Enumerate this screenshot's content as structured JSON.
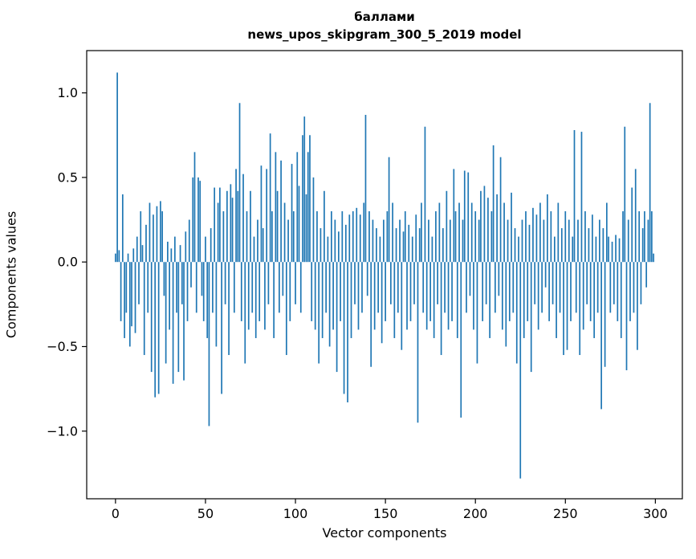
{
  "figure": {
    "title_line1": "баллами",
    "title_line2": "news_upos_skipgram_300_5_2019 model",
    "xlabel": "Vector components",
    "ylabel": "Components values"
  },
  "chart_data": {
    "type": "bar",
    "title": "баллами\nnews_upos_skipgram_300_5_2019 model",
    "xlabel": "Vector components",
    "ylabel": "Components values",
    "bar_color": "#1f77b4",
    "axis_color": "#000000",
    "grid": false,
    "legend": "none",
    "x_start": 0,
    "xlim": [
      -16,
      315
    ],
    "ylim": [
      -1.4,
      1.25
    ],
    "x_ticks": [
      0,
      50,
      100,
      150,
      200,
      250,
      300
    ],
    "x_tick_labels": [
      "0",
      "50",
      "100",
      "150",
      "200",
      "250",
      "300"
    ],
    "y_ticks": [
      -1.0,
      -0.5,
      0.0,
      0.5,
      1.0
    ],
    "y_tick_labels": [
      "−1.0",
      "−0.5",
      "0.0",
      "0.5",
      "1.0"
    ],
    "values": [
      0.05,
      1.12,
      0.07,
      -0.35,
      0.4,
      -0.45,
      -0.3,
      0.05,
      -0.5,
      -0.38,
      0.08,
      -0.42,
      0.15,
      -0.25,
      0.3,
      0.1,
      -0.55,
      0.22,
      -0.3,
      0.35,
      -0.65,
      0.28,
      -0.8,
      0.33,
      -0.78,
      0.36,
      0.3,
      -0.2,
      -0.6,
      0.12,
      -0.4,
      0.08,
      -0.72,
      0.15,
      -0.3,
      -0.65,
      0.1,
      -0.25,
      -0.7,
      0.18,
      -0.35,
      0.25,
      -0.15,
      0.5,
      0.65,
      -0.3,
      0.5,
      0.48,
      -0.2,
      -0.35,
      0.15,
      -0.45,
      -0.97,
      0.2,
      -0.3,
      0.44,
      -0.5,
      0.35,
      0.44,
      -0.78,
      0.3,
      -0.25,
      0.42,
      -0.55,
      0.46,
      0.38,
      -0.3,
      0.55,
      0.42,
      0.94,
      -0.35,
      0.52,
      -0.6,
      0.3,
      -0.4,
      0.42,
      -0.3,
      0.15,
      -0.45,
      0.25,
      -0.35,
      0.57,
      0.2,
      -0.4,
      0.55,
      -0.25,
      0.76,
      0.3,
      -0.45,
      0.65,
      0.42,
      -0.3,
      0.6,
      -0.2,
      0.35,
      -0.55,
      0.25,
      -0.35,
      0.58,
      0.3,
      -0.25,
      0.65,
      0.45,
      -0.3,
      0.75,
      0.86,
      0.4,
      0.65,
      0.75,
      -0.35,
      0.5,
      -0.4,
      0.3,
      -0.6,
      0.2,
      -0.45,
      0.42,
      -0.3,
      0.15,
      -0.5,
      0.3,
      -0.4,
      0.25,
      -0.65,
      0.18,
      -0.35,
      0.3,
      -0.78,
      0.22,
      -0.83,
      0.28,
      -0.45,
      0.3,
      -0.25,
      0.32,
      -0.4,
      0.28,
      -0.3,
      0.35,
      0.87,
      -0.2,
      0.3,
      -0.62,
      0.25,
      -0.4,
      0.2,
      -0.3,
      0.15,
      -0.48,
      0.25,
      -0.35,
      0.3,
      0.62,
      -0.25,
      0.35,
      -0.45,
      0.2,
      -0.3,
      0.25,
      -0.52,
      0.18,
      0.3,
      -0.4,
      0.22,
      -0.35,
      0.15,
      -0.25,
      0.28,
      -0.95,
      0.2,
      0.35,
      -0.3,
      0.8,
      -0.4,
      0.25,
      -0.35,
      0.15,
      -0.45,
      0.3,
      -0.25,
      0.35,
      -0.55,
      0.2,
      -0.3,
      0.42,
      -0.4,
      0.25,
      -0.35,
      0.55,
      0.3,
      -0.45,
      0.35,
      -0.92,
      0.25,
      0.54,
      -0.3,
      0.53,
      -0.2,
      0.35,
      -0.4,
      0.3,
      -0.6,
      0.25,
      0.42,
      -0.35,
      0.45,
      -0.25,
      0.38,
      -0.45,
      0.3,
      0.69,
      -0.3,
      0.4,
      -0.2,
      0.62,
      -0.4,
      0.35,
      -0.5,
      0.25,
      -0.35,
      0.41,
      -0.3,
      0.2,
      -0.6,
      0.15,
      -1.28,
      0.25,
      -0.45,
      0.3,
      -0.35,
      0.22,
      -0.65,
      0.32,
      -0.25,
      0.28,
      -0.4,
      0.35,
      -0.3,
      0.25,
      -0.15,
      0.4,
      -0.35,
      0.3,
      -0.25,
      0.15,
      -0.45,
      0.35,
      -0.3,
      0.2,
      -0.55,
      0.3,
      -0.52,
      0.25,
      -0.35,
      0.15,
      0.78,
      -0.3,
      0.25,
      -0.55,
      0.77,
      -0.4,
      0.3,
      -0.25,
      0.2,
      -0.35,
      0.28,
      -0.45,
      0.15,
      -0.3,
      0.25,
      -0.87,
      0.2,
      -0.62,
      0.35,
      0.15,
      -0.3,
      0.12,
      -0.25,
      0.16,
      -0.35,
      0.14,
      -0.45,
      0.3,
      0.8,
      -0.64,
      0.25,
      -0.35,
      0.44,
      -0.3,
      0.55,
      -0.52,
      0.3,
      -0.25,
      0.2,
      0.3,
      -0.15,
      0.25,
      0.94,
      0.3,
      0.05
    ]
  }
}
